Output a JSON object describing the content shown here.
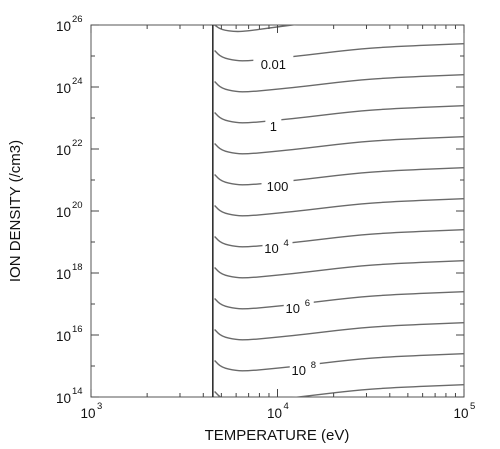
{
  "chart_data": {
    "type": "line",
    "xlabel": "TEMPERATURE (eV)",
    "ylabel": "ION DENSITY (/cm3)",
    "xscale": "log",
    "yscale": "log",
    "xlim": [
      1000,
      100000
    ],
    "ylim": [
      100000000000000.0,
      1e+26
    ],
    "grid": false,
    "x_ticks": [
      {
        "value": 1000,
        "base": "10",
        "exp": "3"
      },
      {
        "value": 10000,
        "base": "10",
        "exp": "4"
      },
      {
        "value": 100000,
        "base": "10",
        "exp": "5"
      }
    ],
    "y_ticks": [
      {
        "value": 100000000000000.0,
        "base": "10",
        "exp": "14"
      },
      {
        "value": 1e+16,
        "base": "10",
        "exp": "16"
      },
      {
        "value": 1e+18,
        "base": "10",
        "exp": "18"
      },
      {
        "value": 1e+20,
        "base": "10",
        "exp": "20"
      },
      {
        "value": 1e+22,
        "base": "10",
        "exp": "22"
      },
      {
        "value": 1e+24,
        "base": "10",
        "exp": "24"
      },
      {
        "value": 1e+26,
        "base": "10",
        "exp": "26"
      }
    ],
    "boundary_line": {
      "x": 4500,
      "y_range": [
        100000000000000.0,
        1e+26
      ]
    },
    "contours": [
      {
        "y": [
          1e+26,
          7e+25,
          6e+25,
          6.5e+25,
          8e+25,
          1e+26,
          1.3e+26,
          1.6e+26,
          2e+26,
          2.5e+26
        ]
      },
      {
        "y": [
          1.5e+25,
          9e+24,
          7e+24,
          7e+24,
          8e+24,
          9.5e+24,
          1.2e+25,
          1.6e+25,
          2e+25,
          2.5e+25
        ]
      },
      {
        "y": [
          1.5e+24,
          9e+23,
          7e+23,
          7e+23,
          8e+23,
          9.5e+23,
          1.2e+24,
          1.6e+24,
          2e+24,
          2.5e+24
        ]
      },
      {
        "y": [
          1.5e+23,
          9e+22,
          7e+22,
          7e+22,
          8e+22,
          9.5e+22,
          1.2e+23,
          1.6e+23,
          2e+23,
          2.5e+23
        ]
      },
      {
        "y": [
          1.5e+22,
          9e+21,
          7e+21,
          7e+21,
          8e+21,
          9.5e+21,
          1.2e+22,
          1.6e+22,
          2e+22,
          2.5e+22
        ]
      },
      {
        "y": [
          1.5e+21,
          9e+20,
          7e+20,
          7e+20,
          8e+20,
          9.5e+20,
          1.2e+21,
          1.6e+21,
          2e+21,
          2.5e+21
        ]
      },
      {
        "y": [
          1.5e+20,
          9e+19,
          7e+19,
          7e+19,
          8e+19,
          9.5e+19,
          1.2e+20,
          1.6e+20,
          2e+20,
          2.5e+20
        ]
      },
      {
        "y": [
          1.5e+19,
          9e+18,
          7e+18,
          7e+18,
          8e+18,
          9.5e+18,
          1.2e+19,
          1.6e+19,
          2e+19,
          2.5e+19
        ]
      },
      {
        "y": [
          1.5e+18,
          9e+17,
          7e+17,
          7e+17,
          8e+17,
          9.5e+17,
          1.2e+18,
          1.6e+18,
          2e+18,
          2.5e+18
        ]
      },
      {
        "y": [
          1.5e+17,
          9e+16,
          7e+16,
          7e+16,
          8e+16,
          9.5e+16,
          1.2e+17,
          1.6e+17,
          2e+17,
          2.5e+17
        ]
      },
      {
        "y": [
          1.5e+16,
          9000000000000000.0,
          7000000000000000.0,
          7000000000000000.0,
          8000000000000000.0,
          9500000000000000.0,
          1.2e+16,
          1.6e+16,
          2e+16,
          2.5e+16
        ]
      },
      {
        "y": [
          1500000000000000.0,
          900000000000000.0,
          700000000000000.0,
          700000000000000.0,
          800000000000000.0,
          950000000000000.0,
          1200000000000000.0,
          1600000000000000.0,
          2000000000000000.0,
          2500000000000000.0
        ]
      },
      {
        "y": [
          150000000000000.0,
          90000000000000.0,
          70000000000000.0,
          70000000000000.0,
          80000000000000.0,
          95000000000000.0,
          120000000000000.0,
          160000000000000.0,
          200000000000000.0,
          250000000000000.0
        ]
      }
    ],
    "contour_x": [
      4600,
      5000,
      6000,
      7000,
      9000,
      12000,
      17000,
      25000,
      40000,
      100000
    ],
    "contour_labels": [
      {
        "text": "0.01",
        "exp": "",
        "x": 9500,
        "y": 5.2e+24
      },
      {
        "text": "1",
        "exp": "",
        "x": 9500,
        "y": 5.2e+22
      },
      {
        "text": "100",
        "exp": "",
        "x": 10000,
        "y": 6e+20
      },
      {
        "text": "10",
        "exp": "4",
        "x": 10000,
        "y": 6e+18
      },
      {
        "text": "10",
        "exp": "6",
        "x": 13000,
        "y": 7e+16
      },
      {
        "text": "10",
        "exp": "8",
        "x": 14000,
        "y": 700000000000000.0
      }
    ]
  }
}
